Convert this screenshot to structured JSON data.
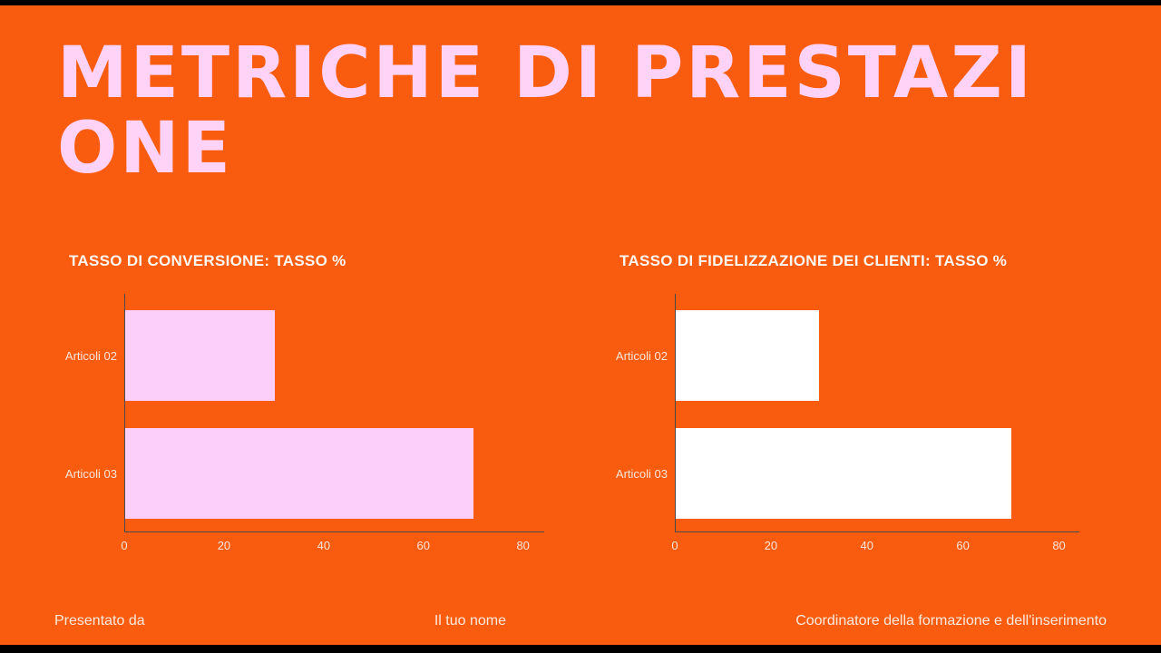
{
  "page": {
    "background_color": "#f95c0f",
    "accent_pink": "#ffd3f8",
    "title": "METRICHE DI PRESTAZIONE"
  },
  "footer": {
    "presented_by": "Presentato da",
    "name": "Il tuo nome",
    "role": "Coordinatore della formazione e dell'inserimento"
  },
  "chart_data": [
    {
      "type": "bar",
      "orientation": "horizontal",
      "title": "TASSO DI CONVERSIONE: TASSO %",
      "categories": [
        "Articoli 02",
        "Articoli 03"
      ],
      "values": [
        30,
        70
      ],
      "xlim": [
        0,
        80
      ],
      "xticks": [
        0,
        20,
        40,
        60,
        80
      ],
      "bar_color": "#fccffb",
      "grid": false,
      "legend": "none"
    },
    {
      "type": "bar",
      "orientation": "horizontal",
      "title": "TASSO DI FIDELIZZAZIONE DEI CLIENTI: TASSO %",
      "categories": [
        "Articoli 02",
        "Articoli 03"
      ],
      "values": [
        30,
        70
      ],
      "xlim": [
        0,
        80
      ],
      "xticks": [
        0,
        20,
        40,
        60,
        80
      ],
      "bar_color": "#ffffff",
      "grid": false,
      "legend": "none"
    }
  ]
}
